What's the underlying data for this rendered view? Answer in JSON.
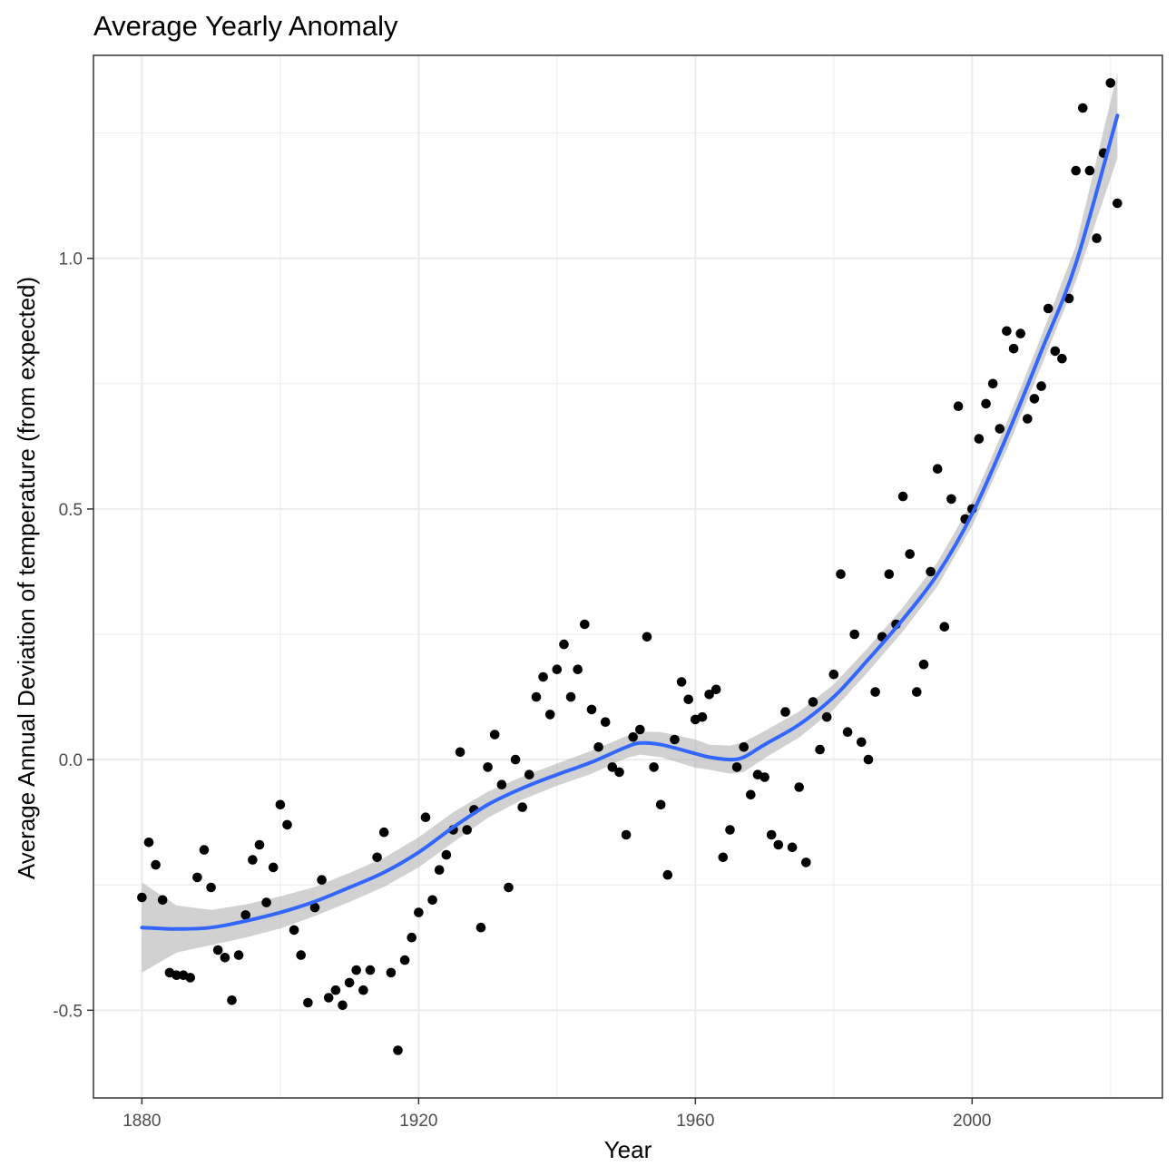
{
  "chart_data": {
    "type": "scatter",
    "title": "Average Yearly Anomaly",
    "xlabel": "Year",
    "ylabel": "Average Annual Deviation of temperature (from expected)",
    "xlim": [
      1873,
      2027.5
    ],
    "ylim": [
      -0.675,
      1.405
    ],
    "x_ticks": [
      1880,
      1920,
      1960,
      2000
    ],
    "x_tick_labels": [
      "1880",
      "1920",
      "1960",
      "2000"
    ],
    "y_ticks": [
      -0.5,
      0.0,
      0.5,
      1.0
    ],
    "y_tick_labels": [
      "-0.5",
      "0.0",
      "0.5",
      "1.0"
    ],
    "x_minor_ticks": [
      1900,
      1940,
      1980,
      2020
    ],
    "y_minor_ticks": [
      -0.25,
      0.25,
      0.75,
      1.25
    ],
    "grid": true,
    "points": {
      "x": [
        1880,
        1881,
        1882,
        1883,
        1884,
        1885,
        1886,
        1887,
        1888,
        1889,
        1890,
        1891,
        1892,
        1893,
        1894,
        1895,
        1896,
        1897,
        1898,
        1899,
        1900,
        1901,
        1902,
        1903,
        1904,
        1905,
        1906,
        1907,
        1908,
        1909,
        1910,
        1911,
        1912,
        1913,
        1914,
        1915,
        1916,
        1917,
        1918,
        1919,
        1920,
        1921,
        1922,
        1923,
        1924,
        1925,
        1926,
        1927,
        1928,
        1929,
        1930,
        1931,
        1932,
        1933,
        1934,
        1935,
        1936,
        1937,
        1938,
        1939,
        1940,
        1941,
        1942,
        1943,
        1944,
        1945,
        1946,
        1947,
        1948,
        1949,
        1950,
        1951,
        1952,
        1953,
        1954,
        1955,
        1956,
        1957,
        1958,
        1959,
        1960,
        1961,
        1962,
        1963,
        1964,
        1965,
        1966,
        1967,
        1968,
        1969,
        1970,
        1971,
        1972,
        1973,
        1974,
        1975,
        1976,
        1977,
        1978,
        1979,
        1980,
        1981,
        1982,
        1983,
        1984,
        1985,
        1986,
        1987,
        1988,
        1989,
        1990,
        1991,
        1992,
        1993,
        1994,
        1995,
        1996,
        1997,
        1998,
        1999,
        2000,
        2001,
        2002,
        2003,
        2004,
        2005,
        2006,
        2007,
        2008,
        2009,
        2010,
        2011,
        2012,
        2013,
        2014,
        2015,
        2016,
        2017,
        2018,
        2019,
        2020,
        2021
      ],
      "y": [
        -0.275,
        -0.165,
        -0.21,
        -0.28,
        -0.425,
        -0.43,
        -0.43,
        -0.435,
        -0.235,
        -0.18,
        -0.255,
        -0.38,
        -0.395,
        -0.48,
        -0.39,
        -0.31,
        -0.2,
        -0.17,
        -0.285,
        -0.215,
        -0.09,
        -0.13,
        -0.34,
        -0.39,
        -0.485,
        -0.295,
        -0.24,
        -0.475,
        -0.46,
        -0.49,
        -0.445,
        -0.42,
        -0.46,
        -0.42,
        -0.195,
        -0.145,
        -0.425,
        -0.58,
        -0.4,
        -0.355,
        -0.305,
        -0.115,
        -0.28,
        -0.22,
        -0.19,
        -0.14,
        0.015,
        -0.14,
        -0.1,
        -0.335,
        -0.015,
        0.05,
        -0.05,
        -0.255,
        0.0,
        -0.095,
        -0.03,
        0.125,
        0.165,
        0.09,
        0.18,
        0.23,
        0.125,
        0.18,
        0.27,
        0.1,
        0.025,
        0.075,
        -0.015,
        -0.025,
        -0.15,
        0.045,
        0.06,
        0.245,
        -0.015,
        -0.09,
        -0.23,
        0.04,
        0.155,
        0.12,
        0.08,
        0.085,
        0.13,
        0.14,
        -0.195,
        -0.14,
        -0.015,
        0.025,
        -0.07,
        -0.03,
        -0.035,
        -0.15,
        -0.17,
        0.095,
        -0.175,
        -0.055,
        -0.205,
        0.115,
        0.02,
        0.085,
        0.17,
        0.37,
        0.055,
        0.25,
        0.035,
        0.0,
        0.135,
        0.245,
        0.37,
        0.27,
        0.525,
        0.41,
        0.135,
        0.19,
        0.375,
        0.58,
        0.265,
        0.52,
        0.705,
        0.48,
        0.5,
        0.64,
        0.71,
        0.75,
        0.66,
        0.855,
        0.82,
        0.85,
        0.68,
        0.72,
        0.745,
        0.9,
        0.815,
        0.8,
        0.92,
        1.175,
        1.3,
        1.175,
        1.04,
        1.21,
        1.35,
        1.11
      ]
    },
    "smooth": {
      "x": [
        1880,
        1885,
        1890,
        1895,
        1900,
        1905,
        1910,
        1915,
        1920,
        1925,
        1930,
        1935,
        1940,
        1945,
        1950,
        1952,
        1955,
        1960,
        1962,
        1965,
        1967,
        1970,
        1975,
        1980,
        1985,
        1990,
        1995,
        2000,
        2005,
        2010,
        2015,
        2021
      ],
      "y": [
        -0.335,
        -0.338,
        -0.335,
        -0.322,
        -0.305,
        -0.283,
        -0.255,
        -0.225,
        -0.185,
        -0.135,
        -0.09,
        -0.057,
        -0.03,
        -0.005,
        0.025,
        0.033,
        0.03,
        0.012,
        0.005,
        0.0,
        0.005,
        0.03,
        0.07,
        0.125,
        0.2,
        0.28,
        0.37,
        0.49,
        0.645,
        0.815,
        0.99,
        1.285
      ],
      "ci_lower": [
        -0.425,
        -0.385,
        -0.37,
        -0.355,
        -0.337,
        -0.312,
        -0.284,
        -0.254,
        -0.215,
        -0.165,
        -0.116,
        -0.08,
        -0.052,
        -0.028,
        0.003,
        0.01,
        0.005,
        -0.016,
        -0.02,
        -0.028,
        -0.025,
        0.003,
        0.044,
        0.1,
        0.176,
        0.256,
        0.346,
        0.466,
        0.618,
        0.785,
        0.955,
        1.2
      ],
      "ci_upper": [
        -0.245,
        -0.291,
        -0.3,
        -0.289,
        -0.273,
        -0.254,
        -0.226,
        -0.196,
        -0.155,
        -0.105,
        -0.064,
        -0.034,
        -0.008,
        0.018,
        0.047,
        0.056,
        0.055,
        0.04,
        0.03,
        0.028,
        0.035,
        0.057,
        0.096,
        0.15,
        0.224,
        0.304,
        0.394,
        0.514,
        0.672,
        0.845,
        1.025,
        1.37
      ]
    },
    "colors": {
      "points": "#000000",
      "smooth_line": "#3366ff",
      "ci_band": "#b3b3b3",
      "grid_major": "#ebebeb",
      "grid_minor": "#ebebeb",
      "panel_border": "#333333",
      "tick_label": "#4d4d4d"
    }
  }
}
